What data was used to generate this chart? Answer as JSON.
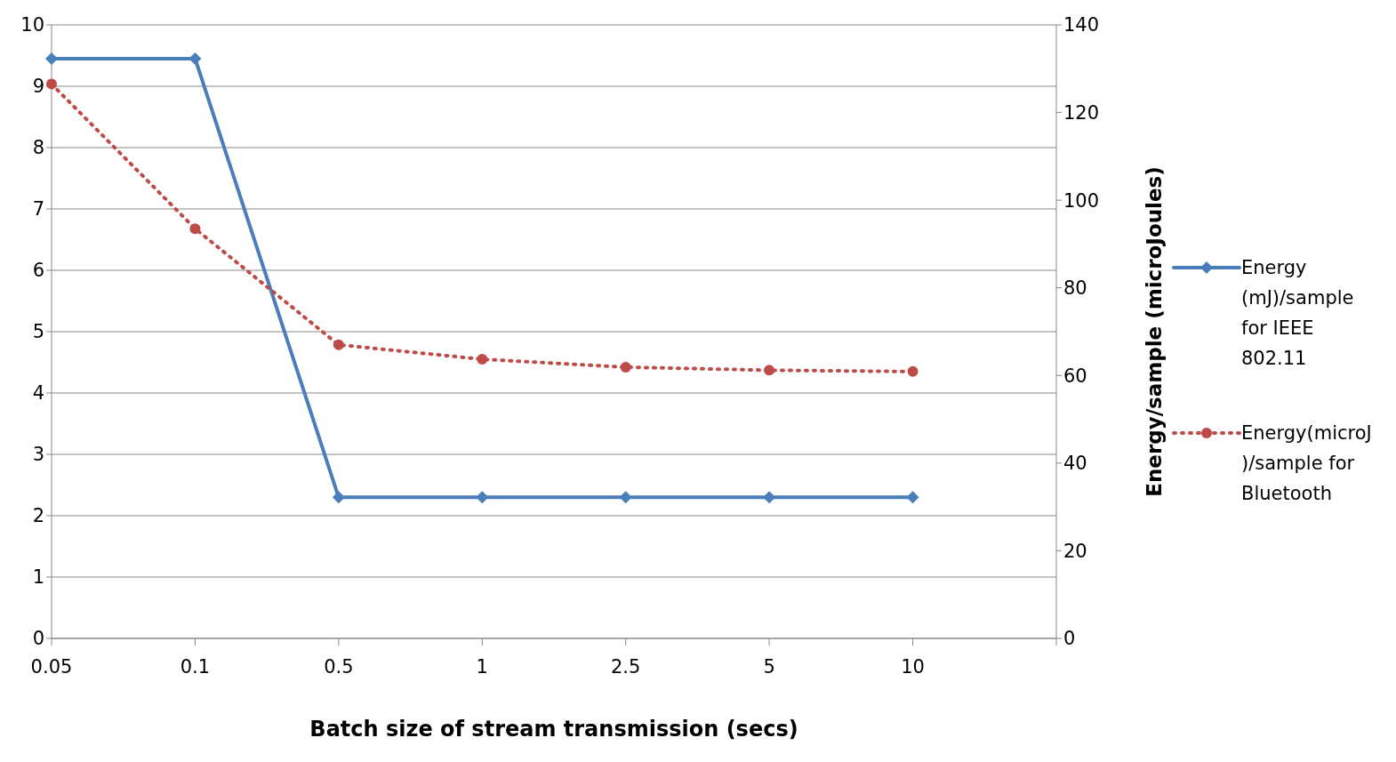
{
  "chart_data": {
    "type": "line",
    "xlabel": "Batch size of stream transmission (secs)",
    "y2label": "Energy/sample (microJoules)",
    "categories": [
      "0.05",
      "0.1",
      "0.5",
      "1",
      "2.5",
      "5",
      "10",
      null
    ],
    "ylim": [
      0,
      10
    ],
    "yticks": [
      0,
      1,
      2,
      3,
      4,
      5,
      6,
      7,
      8,
      9,
      10
    ],
    "y2lim": [
      0,
      140
    ],
    "y2ticks": [
      0,
      20,
      40,
      60,
      80,
      100,
      120,
      140
    ],
    "grid": "y",
    "legend": "right",
    "series": [
      {
        "name": "Energy (mJ)/sample for IEEE 802.11",
        "color": "#4a7ebb",
        "marker": "diamond",
        "line_style": "solid",
        "values": [
          9.45,
          9.45,
          2.3,
          2.3,
          2.3,
          2.3,
          2.3,
          null
        ]
      },
      {
        "name": "Energy(microJ)/sample for Bluetooth",
        "color": "#be4b48",
        "marker": "circle",
        "line_style": "dotted",
        "axis": "y2",
        "values": [
          126.5,
          93.5,
          67,
          63.7,
          61.9,
          61.2,
          60.9,
          null
        ]
      }
    ]
  }
}
